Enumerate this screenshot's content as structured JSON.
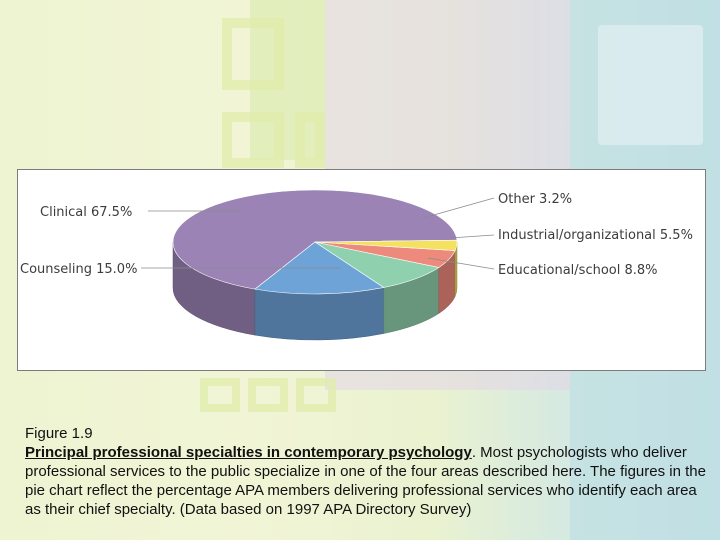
{
  "chart_data": {
    "type": "pie",
    "slices": [
      {
        "label": "Clinical",
        "value_text": "67.5%",
        "value": 67.5,
        "color": "#9b84b5"
      },
      {
        "label": "Counseling",
        "value_text": "15.0%",
        "value": 15.0,
        "color": "#6ea3d8"
      },
      {
        "label": "Educational/school",
        "value_text": "8.8%",
        "value": 8.8,
        "color": "#8fd1ae"
      },
      {
        "label": "Industrial/organizational",
        "value_text": "5.5%",
        "value": 5.5,
        "color": "#ee8a7c"
      },
      {
        "label": "Other",
        "value_text": "3.2%",
        "value": 3.2,
        "color": "#f3e15f"
      }
    ],
    "style": "3d"
  },
  "caption": {
    "figure_label": "Figure 1.9",
    "title": "Principal professional specialties in contemporary psychology",
    "body": ". Most psychologists who deliver professional services to the public specialize in one of the four areas described here. The figures in the pie chart reflect the percentage APA members delivering professional services who identify each area as their chief specialty. (Data based on 1997 APA Directory Survey)"
  },
  "theme": {
    "background": "#eef4d2",
    "chart_bg": "#ffffff",
    "label_color": "#3c3c3c"
  }
}
